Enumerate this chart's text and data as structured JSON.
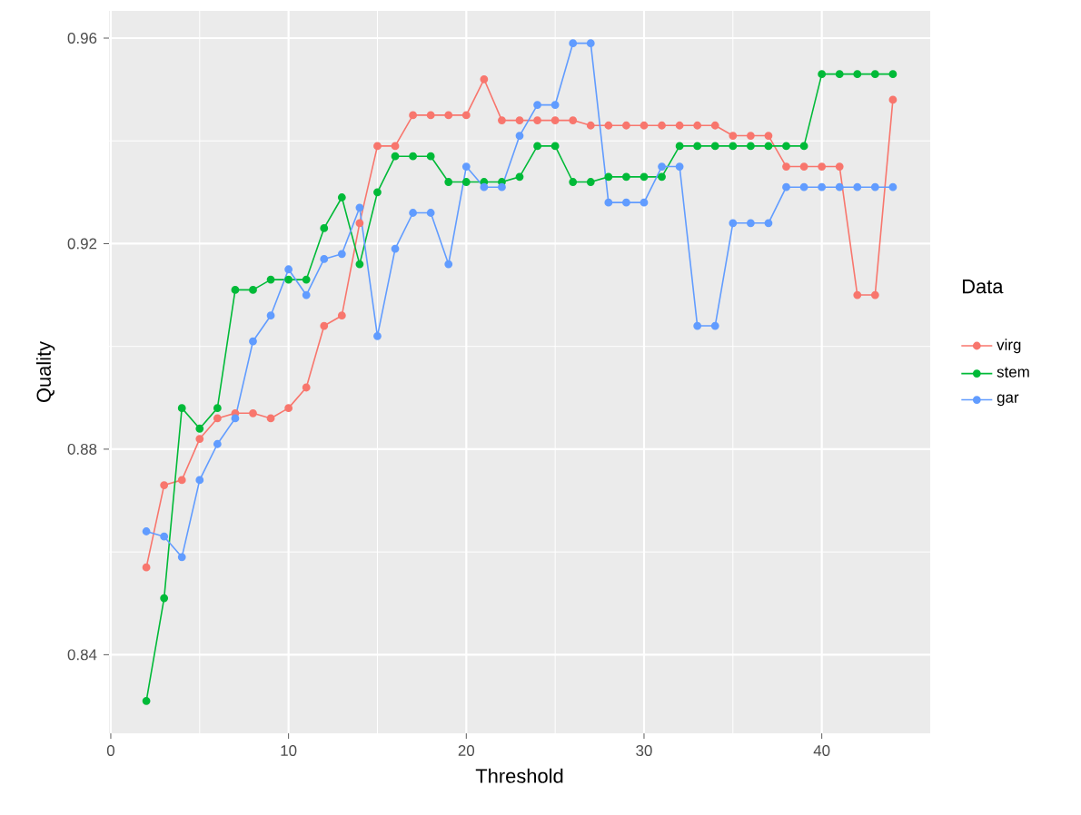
{
  "chart_data": {
    "type": "line",
    "xlabel": "Threshold",
    "ylabel": "Quality",
    "legend_title": "Data",
    "xlim": [
      -0.1,
      46.1
    ],
    "ylim": [
      0.8247,
      0.9653
    ],
    "xticks": [
      0,
      10,
      20,
      30,
      40
    ],
    "yticks": [
      0.84,
      0.88,
      0.92,
      0.96
    ],
    "grid": true,
    "legend": "right",
    "marker": "circle",
    "line_style": "solid",
    "x": [
      2,
      3,
      4,
      5,
      6,
      7,
      8,
      9,
      10,
      11,
      12,
      13,
      14,
      15,
      16,
      17,
      18,
      19,
      20,
      21,
      22,
      23,
      24,
      25,
      26,
      27,
      28,
      29,
      30,
      31,
      32,
      33,
      34,
      35,
      36,
      37,
      38,
      39,
      40,
      41,
      42,
      43,
      44
    ],
    "series": [
      {
        "name": "virg",
        "color": "#f8766d",
        "values": [
          0.857,
          0.873,
          0.874,
          0.882,
          0.886,
          0.887,
          0.887,
          0.886,
          0.888,
          0.892,
          0.904,
          0.906,
          0.924,
          0.939,
          0.939,
          0.945,
          0.945,
          0.945,
          0.945,
          0.952,
          0.944,
          0.944,
          0.944,
          0.944,
          0.944,
          0.943,
          0.943,
          0.943,
          0.943,
          0.943,
          0.943,
          0.943,
          0.943,
          0.941,
          0.941,
          0.941,
          0.935,
          0.935,
          0.935,
          0.935,
          0.91,
          0.91,
          0.948
        ]
      },
      {
        "name": "stem",
        "color": "#00ba38",
        "values": [
          0.831,
          0.851,
          0.888,
          0.884,
          0.888,
          0.911,
          0.911,
          0.913,
          0.913,
          0.913,
          0.923,
          0.929,
          0.916,
          0.93,
          0.937,
          0.937,
          0.937,
          0.932,
          0.932,
          0.932,
          0.932,
          0.933,
          0.939,
          0.939,
          0.932,
          0.932,
          0.933,
          0.933,
          0.933,
          0.933,
          0.939,
          0.939,
          0.939,
          0.939,
          0.939,
          0.939,
          0.939,
          0.939,
          0.953,
          0.953,
          0.953,
          0.953,
          0.953
        ]
      },
      {
        "name": "gar",
        "color": "#619cff",
        "values": [
          0.864,
          0.863,
          0.859,
          0.874,
          0.881,
          0.886,
          0.901,
          0.906,
          0.915,
          0.91,
          0.917,
          0.918,
          0.927,
          0.902,
          0.919,
          0.926,
          0.926,
          0.916,
          0.935,
          0.931,
          0.931,
          0.941,
          0.947,
          0.947,
          0.959,
          0.959,
          0.928,
          0.928,
          0.928,
          0.935,
          0.935,
          0.904,
          0.904,
          0.924,
          0.924,
          0.924,
          0.931,
          0.931,
          0.931,
          0.931,
          0.931,
          0.931,
          0.931
        ]
      }
    ]
  }
}
